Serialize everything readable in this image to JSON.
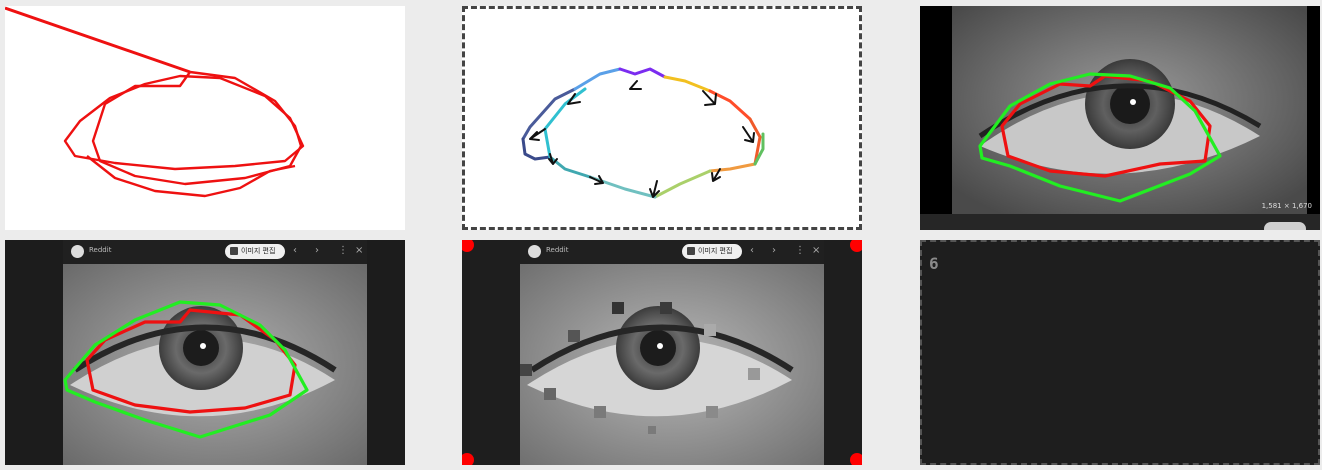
{
  "tiles": [
    {
      "name": "red-trace-tile"
    },
    {
      "name": "gradient-arrow-contour-tile"
    },
    {
      "name": "eye-overlay-tile",
      "resolution": "1,581 × 1,670"
    },
    {
      "name": "viewer-eye-overlay-tile",
      "viewer_title": "Reddit",
      "edit_label": "이미지 편집"
    },
    {
      "name": "viewer-eye-masked-tile",
      "viewer_title": "Reddit",
      "edit_label": "이미지 편집"
    },
    {
      "name": "empty-dark-tile",
      "number": "6"
    }
  ],
  "colors": {
    "trace": "#ee1111",
    "contour_green": "#22ee22",
    "marker": "#ff0000"
  }
}
